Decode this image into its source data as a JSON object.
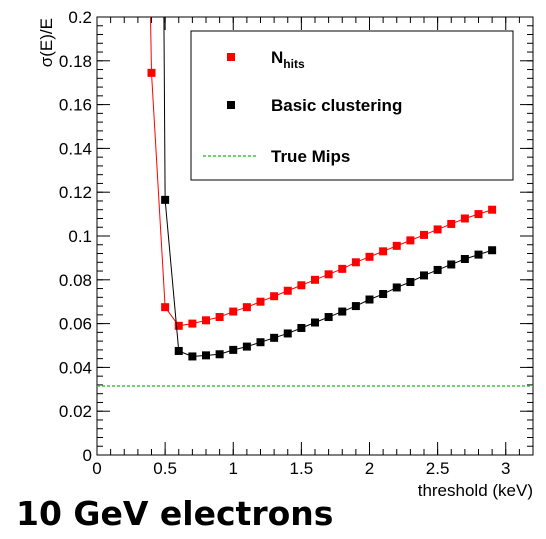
{
  "caption": "10 GeV electrons",
  "chart_data": {
    "type": "scatter",
    "title": "",
    "xlabel": "threshold (keV)",
    "ylabel": "σ(E)/E",
    "xlim": [
      0,
      3.2
    ],
    "ylim": [
      0,
      0.2
    ],
    "x_ticks": [
      "0",
      "0.5",
      "1",
      "1.5",
      "2",
      "2.5",
      "3"
    ],
    "y_ticks": [
      "0",
      "0.02",
      "0.04",
      "0.06",
      "0.08",
      "0.1",
      "0.12",
      "0.14",
      "0.16",
      "0.18",
      "0.2"
    ],
    "grid": false,
    "legend_position": "top-right",
    "series": [
      {
        "name": "N",
        "name_subscript": "hits",
        "color": "#ff0000",
        "marker": "square",
        "line": true,
        "entry_x": 0.39,
        "x": [
          0.4,
          0.5,
          0.6,
          0.7,
          0.8,
          0.9,
          1.0,
          1.1,
          1.2,
          1.3,
          1.4,
          1.5,
          1.6,
          1.7,
          1.8,
          1.9,
          2.0,
          2.1,
          2.2,
          2.3,
          2.4,
          2.5,
          2.6,
          2.7,
          2.8,
          2.9
        ],
        "y": [
          0.1745,
          0.0675,
          0.059,
          0.06,
          0.0615,
          0.063,
          0.0655,
          0.0675,
          0.07,
          0.0725,
          0.075,
          0.0775,
          0.08,
          0.0825,
          0.085,
          0.088,
          0.0905,
          0.093,
          0.0955,
          0.098,
          0.1005,
          0.103,
          0.1055,
          0.108,
          0.11,
          0.112
        ]
      },
      {
        "name": "Basic clustering",
        "color": "#000000",
        "marker": "square",
        "line": true,
        "entry_x": 0.49,
        "x": [
          0.5,
          0.6,
          0.7,
          0.8,
          0.9,
          1.0,
          1.1,
          1.2,
          1.3,
          1.4,
          1.5,
          1.6,
          1.7,
          1.8,
          1.9,
          2.0,
          2.1,
          2.2,
          2.3,
          2.4,
          2.5,
          2.6,
          2.7,
          2.8,
          2.9
        ],
        "y": [
          0.1165,
          0.0475,
          0.045,
          0.0455,
          0.046,
          0.048,
          0.0495,
          0.0515,
          0.0535,
          0.0555,
          0.058,
          0.0605,
          0.063,
          0.0655,
          0.068,
          0.071,
          0.0735,
          0.0765,
          0.079,
          0.082,
          0.0845,
          0.087,
          0.0895,
          0.0915,
          0.0935
        ]
      },
      {
        "name": "True Mips",
        "color": "#3cc83c",
        "marker": "none",
        "line": "dashed",
        "constant_y": 0.0315
      }
    ]
  }
}
